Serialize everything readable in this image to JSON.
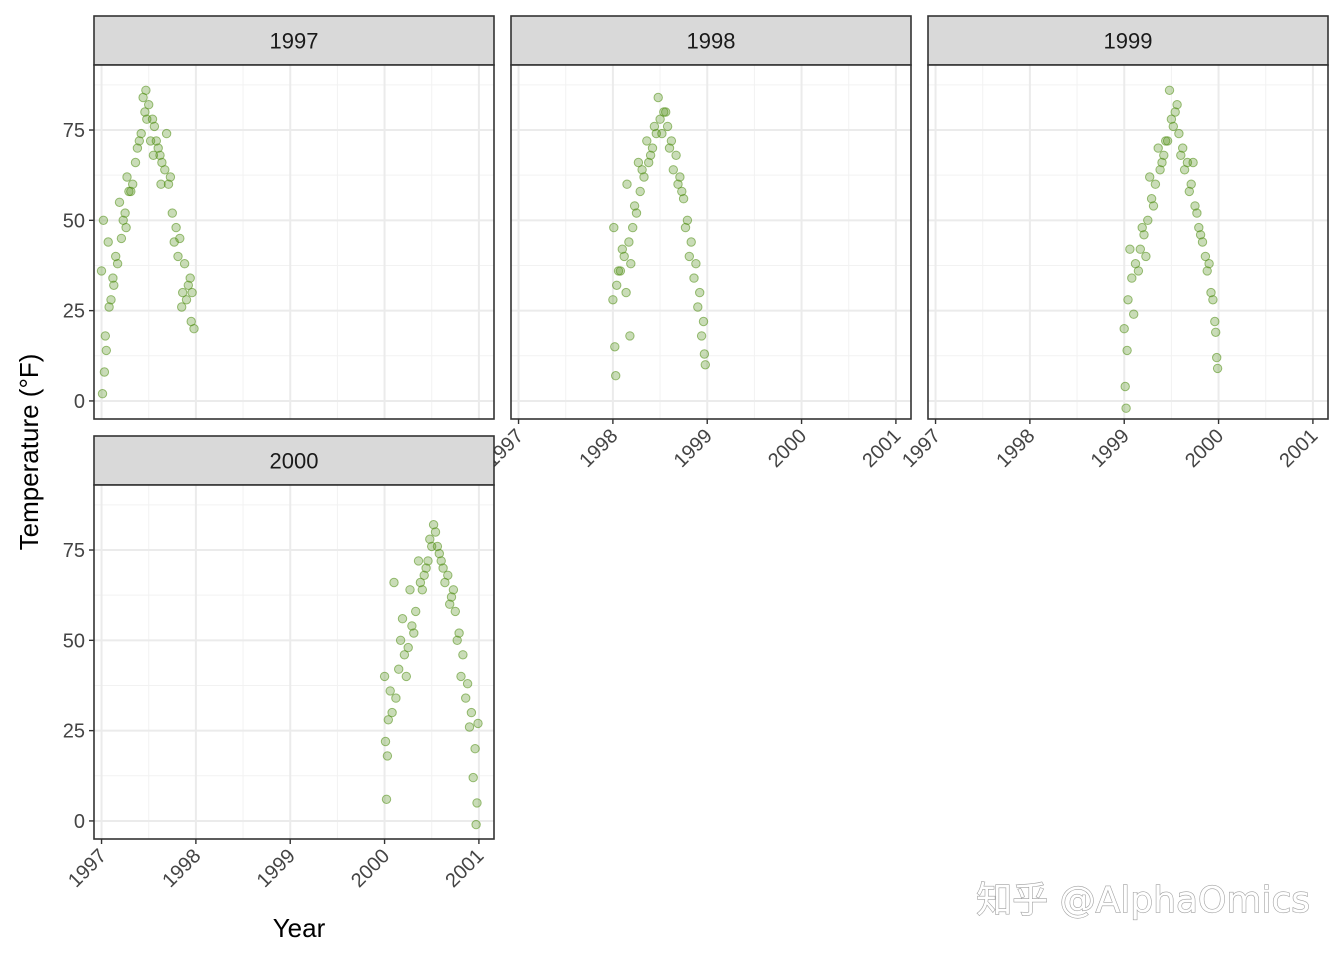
{
  "chart_data": {
    "type": "scatter",
    "facet_by": "year",
    "facets": [
      "1997",
      "1998",
      "1999",
      "2000"
    ],
    "xlabel": "Year",
    "ylabel": "Temperature (°F)",
    "xlim": [
      1996.92,
      2001.16
    ],
    "ylim": [
      -5,
      93
    ],
    "x_ticks": [
      "1997",
      "1998",
      "1999",
      "2000",
      "2001"
    ],
    "y_ticks": [
      "0",
      "25",
      "50",
      "75"
    ],
    "point_color": "#4d8c0f",
    "point_opacity": 0.3,
    "grid": true,
    "theme": "bw",
    "watermark": "知乎 @AlphaOmics",
    "series": [
      {
        "facet": "1997",
        "x": [
          1997.0,
          1997.04,
          1997.08,
          1997.12,
          1997.17,
          1997.21,
          1997.25,
          1997.29,
          1997.33,
          1997.38,
          1997.42,
          1997.46,
          1997.5,
          1997.54,
          1997.58,
          1997.62,
          1997.67,
          1997.71,
          1997.75,
          1997.79,
          1997.83,
          1997.88,
          1997.92,
          1997.96,
          1997.01,
          1997.03,
          1997.07,
          1997.1,
          1997.15,
          1997.19,
          1997.23,
          1997.27,
          1997.31,
          1997.36,
          1997.4,
          1997.44,
          1997.48,
          1997.52,
          1997.56,
          1997.6,
          1997.64,
          1997.69,
          1997.73,
          1997.77,
          1997.81,
          1997.86,
          1997.9,
          1997.94,
          1997.98,
          1997.02,
          1997.05,
          1997.13,
          1997.26,
          1997.47,
          1997.55,
          1997.63,
          1997.85,
          1997.95
        ],
        "y": [
          36,
          18,
          26,
          34,
          38,
          45,
          52,
          58,
          60,
          70,
          74,
          80,
          82,
          78,
          72,
          68,
          64,
          60,
          52,
          48,
          45,
          38,
          32,
          30,
          2,
          8,
          44,
          28,
          40,
          55,
          50,
          62,
          58,
          66,
          72,
          84,
          78,
          72,
          76,
          70,
          66,
          74,
          62,
          44,
          40,
          30,
          28,
          34,
          20,
          50,
          14,
          32,
          48,
          86,
          68,
          60,
          26,
          22
        ]
      },
      {
        "facet": "1998",
        "x": [
          1998.0,
          1998.04,
          1998.08,
          1998.12,
          1998.17,
          1998.21,
          1998.25,
          1998.29,
          1998.33,
          1998.38,
          1998.42,
          1998.46,
          1998.5,
          1998.54,
          1998.58,
          1998.62,
          1998.67,
          1998.71,
          1998.75,
          1998.79,
          1998.83,
          1998.88,
          1998.92,
          1998.96,
          1998.01,
          1998.03,
          1998.06,
          1998.1,
          1998.15,
          1998.19,
          1998.23,
          1998.27,
          1998.31,
          1998.36,
          1998.4,
          1998.44,
          1998.48,
          1998.52,
          1998.56,
          1998.6,
          1998.64,
          1998.69,
          1998.73,
          1998.77,
          1998.81,
          1998.86,
          1998.9,
          1998.94,
          1998.98,
          1998.02,
          1998.18,
          1998.14,
          1998.97
        ],
        "y": [
          28,
          32,
          36,
          40,
          44,
          48,
          52,
          58,
          62,
          66,
          70,
          74,
          78,
          80,
          76,
          72,
          68,
          62,
          56,
          50,
          44,
          38,
          30,
          22,
          48,
          7,
          36,
          42,
          60,
          38,
          54,
          66,
          64,
          72,
          68,
          76,
          84,
          74,
          80,
          70,
          64,
          60,
          58,
          48,
          40,
          34,
          26,
          18,
          10,
          15,
          18,
          30,
          13
        ]
      },
      {
        "facet": "1999",
        "x": [
          1999.0,
          1999.04,
          1999.08,
          1999.12,
          1999.17,
          1999.21,
          1999.25,
          1999.29,
          1999.33,
          1999.38,
          1999.42,
          1999.46,
          1999.5,
          1999.54,
          1999.58,
          1999.62,
          1999.67,
          1999.71,
          1999.75,
          1999.79,
          1999.83,
          1999.88,
          1999.92,
          1999.96,
          1999.01,
          1999.02,
          1999.06,
          1999.1,
          1999.15,
          1999.19,
          1999.23,
          1999.27,
          1999.31,
          1999.36,
          1999.4,
          1999.44,
          1999.48,
          1999.52,
          1999.56,
          1999.6,
          1999.64,
          1999.69,
          1999.73,
          1999.77,
          1999.81,
          1999.86,
          1999.9,
          1999.94,
          1999.98,
          1999.03,
          1999.99,
          1999.97
        ],
        "y": [
          20,
          28,
          34,
          38,
          42,
          46,
          50,
          56,
          60,
          64,
          68,
          72,
          78,
          80,
          74,
          70,
          66,
          60,
          54,
          48,
          44,
          36,
          30,
          22,
          4,
          -2,
          42,
          24,
          36,
          48,
          40,
          62,
          54,
          70,
          66,
          72,
          86,
          76,
          82,
          68,
          64,
          58,
          66,
          52,
          46,
          40,
          38,
          28,
          12,
          14,
          9,
          19
        ]
      },
      {
        "facet": "2000",
        "x": [
          2000.0,
          2000.04,
          2000.08,
          2000.12,
          2000.17,
          2000.21,
          2000.25,
          2000.29,
          2000.33,
          2000.38,
          2000.42,
          2000.46,
          2000.5,
          2000.54,
          2000.58,
          2000.62,
          2000.67,
          2000.71,
          2000.75,
          2000.79,
          2000.83,
          2000.88,
          2000.92,
          2000.96,
          2000.01,
          2000.02,
          2000.06,
          2000.1,
          2000.15,
          2000.19,
          2000.23,
          2000.27,
          2000.31,
          2000.36,
          2000.4,
          2000.44,
          2000.48,
          2000.52,
          2000.56,
          2000.6,
          2000.64,
          2000.69,
          2000.73,
          2000.77,
          2000.81,
          2000.86,
          2000.9,
          2000.94,
          2000.98,
          2000.03,
          2000.99,
          2000.97
        ],
        "y": [
          40,
          28,
          30,
          34,
          50,
          46,
          48,
          54,
          58,
          66,
          68,
          72,
          76,
          80,
          74,
          70,
          68,
          62,
          58,
          52,
          46,
          38,
          30,
          20,
          22,
          6,
          36,
          66,
          42,
          56,
          40,
          64,
          52,
          72,
          64,
          70,
          78,
          82,
          76,
          72,
          66,
          60,
          64,
          50,
          40,
          34,
          26,
          12,
          5,
          18,
          27,
          -1
        ]
      }
    ]
  }
}
